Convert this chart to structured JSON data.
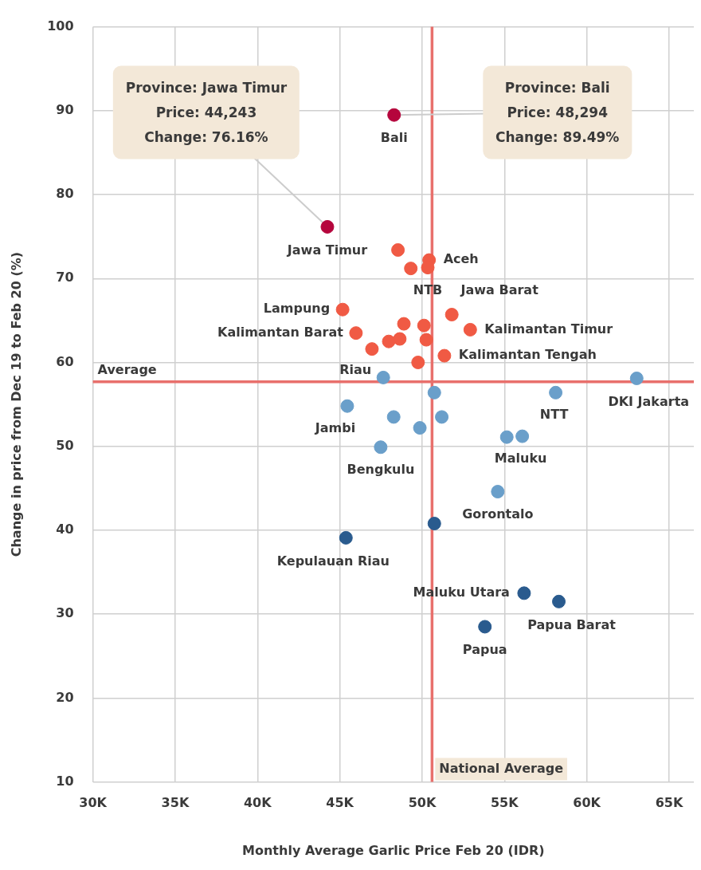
{
  "chart_data": {
    "type": "scatter",
    "xlabel": "Monthly Average Garlic Price Feb 20 (IDR)",
    "ylabel": "Change in price from Dec 19 to Feb 20 (%)",
    "xlim": [
      30000,
      66500
    ],
    "ylim": [
      10,
      100
    ],
    "xticks": [
      {
        "value": 30000,
        "label": "30K"
      },
      {
        "value": 35000,
        "label": "35K"
      },
      {
        "value": 40000,
        "label": "40K"
      },
      {
        "value": 45000,
        "label": "45K"
      },
      {
        "value": 50000,
        "label": "50K"
      },
      {
        "value": 55000,
        "label": "55K"
      },
      {
        "value": 60000,
        "label": "60K"
      },
      {
        "value": 65000,
        "label": "65K"
      }
    ],
    "yticks": [
      10,
      20,
      30,
      40,
      50,
      60,
      70,
      80,
      90,
      100
    ],
    "grid": true,
    "legend": false,
    "marker": "circle",
    "series": [
      {
        "color": "#b5053c",
        "x": [
          48294,
          44243
        ],
        "values": [
          89.49,
          76.16
        ]
      },
      {
        "color": "#f05a44",
        "x": [
          48530,
          50420,
          49310,
          50340,
          45170,
          51800,
          52920,
          45980,
          48890,
          50110,
          48640,
          47970,
          50250,
          46950,
          51350,
          49750
        ],
        "values": [
          73.4,
          72.2,
          71.2,
          71.3,
          66.3,
          65.7,
          63.9,
          63.5,
          64.6,
          64.4,
          62.8,
          62.5,
          62.7,
          61.6,
          60.8,
          60.0
        ]
      },
      {
        "color": "#6a9fca",
        "x": [
          47640,
          63030,
          50740,
          58110,
          45450,
          48270,
          51190,
          49860,
          55140,
          56080,
          47480,
          54590
        ],
        "values": [
          58.2,
          58.1,
          56.4,
          56.4,
          54.8,
          53.5,
          53.5,
          52.2,
          51.1,
          51.2,
          49.9,
          44.6
        ]
      },
      {
        "color": "#2a5b8e",
        "x": [
          50740,
          45370,
          56190,
          58300,
          53810
        ],
        "values": [
          40.8,
          39.1,
          32.5,
          31.5,
          28.5
        ]
      }
    ],
    "ref_lines": [
      {
        "axis": "x",
        "value": 50600,
        "label": "National Average",
        "color": "#e8706c"
      },
      {
        "axis": "y",
        "value": 57.7,
        "label": "Average",
        "color": "#e8706c"
      }
    ],
    "annotations": [
      {
        "text": "Province: Jawa Timur\nPrice: 44,243\nChange: 76.16%",
        "x": 44243,
        "y": 76.16
      },
      {
        "text": "Province: Bali\nPrice: 48,294\nChange: 89.49%",
        "x": 48294,
        "y": 89.49
      },
      {
        "text": "Bali",
        "x": 48294,
        "y": 89.49
      },
      {
        "text": "Jawa Timur",
        "x": 44243,
        "y": 76.16
      },
      {
        "text": "Aceh",
        "x": 50420,
        "y": 72.2
      },
      {
        "text": "NTB",
        "x": 50340,
        "y": 71.3
      },
      {
        "text": "Jawa Barat",
        "x": 51800,
        "y": 65.7
      },
      {
        "text": "Lampung",
        "x": 45170,
        "y": 66.3
      },
      {
        "text": "Kalimantan Barat",
        "x": 45980,
        "y": 63.5
      },
      {
        "text": "Kalimantan Timur",
        "x": 52920,
        "y": 63.9
      },
      {
        "text": "Kalimantan Tengah",
        "x": 51350,
        "y": 60.8
      },
      {
        "text": "Riau",
        "x": 47640,
        "y": 58.2
      },
      {
        "text": "DKI Jakarta",
        "x": 63030,
        "y": 58.1
      },
      {
        "text": "NTT",
        "x": 58110,
        "y": 56.4
      },
      {
        "text": "Jambi",
        "x": 45450,
        "y": 54.8
      },
      {
        "text": "Bengkulu",
        "x": 47480,
        "y": 49.9
      },
      {
        "text": "Maluku",
        "x": 56080,
        "y": 51.2
      },
      {
        "text": "Gorontalo",
        "x": 54590,
        "y": 44.6
      },
      {
        "text": "Kepulauan Riau",
        "x": 45370,
        "y": 39.1
      },
      {
        "text": "Maluku Utara",
        "x": 56190,
        "y": 32.5
      },
      {
        "text": "Papua Barat",
        "x": 58300,
        "y": 31.5
      },
      {
        "text": "Papua",
        "x": 53810,
        "y": 28.5
      }
    ]
  }
}
